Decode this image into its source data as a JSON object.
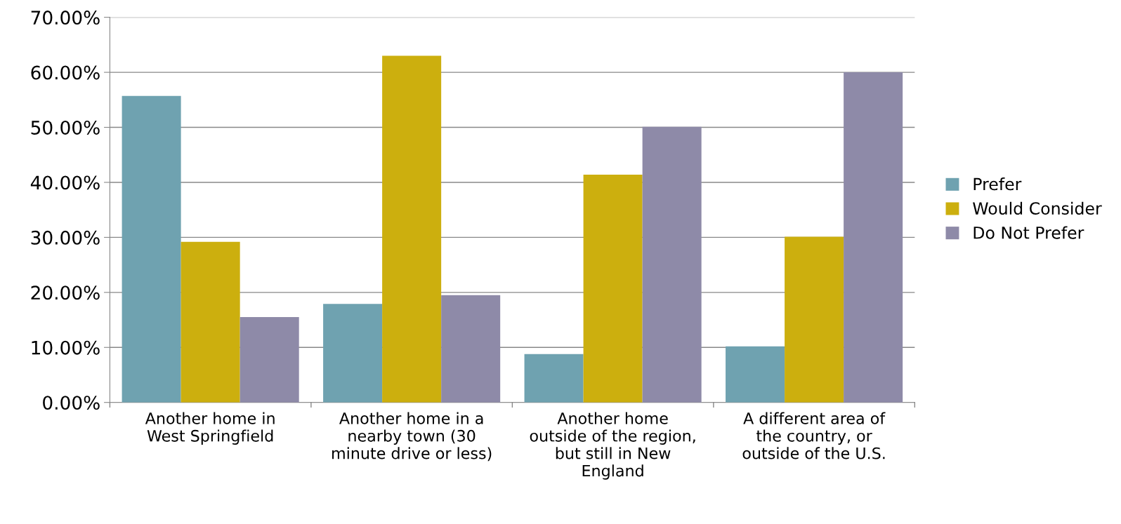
{
  "chart_data": {
    "type": "bar",
    "categories": [
      "Another home in\nWest Springfield",
      "Another home in a\nnearby town (30\nminute drive or less)",
      "Another home\noutside of the region,\nbut still in New\nEngland",
      "A different area of\nthe country, or\noutside of the U.S."
    ],
    "series": [
      {
        "name": "Prefer",
        "color": "#6fa2b0",
        "values": [
          55.7,
          17.9,
          8.8,
          10.2
        ]
      },
      {
        "name": "Would Consider",
        "color": "#ccaf0e",
        "values": [
          29.2,
          63.0,
          41.4,
          30.1
        ]
      },
      {
        "name": "Do Not Prefer",
        "color": "#8e8aa8",
        "values": [
          15.5,
          19.5,
          50.1,
          60.0
        ]
      }
    ],
    "ylim": [
      0,
      70
    ],
    "yticks": [
      {
        "value": 0,
        "label": "0.00%"
      },
      {
        "value": 10,
        "label": "10.00%"
      },
      {
        "value": 20,
        "label": "20.00%"
      },
      {
        "value": 30,
        "label": "30.00%"
      },
      {
        "value": 40,
        "label": "40.00%"
      },
      {
        "value": 50,
        "label": "50.00%"
      },
      {
        "value": 60,
        "label": "60.00%"
      },
      {
        "value": 70,
        "label": "70.00%"
      }
    ],
    "grid": "y",
    "legend": "right"
  }
}
